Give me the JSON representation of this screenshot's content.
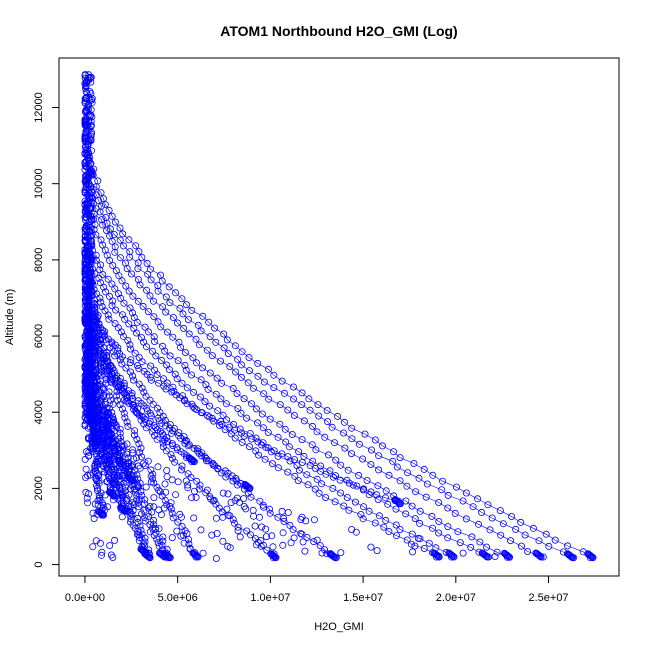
{
  "chart_data": {
    "type": "scatter",
    "title": "ATOM1 Northbound H2O_GMI (Log)",
    "xlabel": "H2O_GMI",
    "ylabel": "Altitude (m)",
    "xlim": [
      -1400000,
      28800000
    ],
    "ylim": [
      -300,
      13300
    ],
    "x_ticks": [
      {
        "value": 0,
        "label": "0.0e+00"
      },
      {
        "value": 5000000,
        "label": "5.0e+06"
      },
      {
        "value": 10000000,
        "label": "1.0e+07"
      },
      {
        "value": 15000000,
        "label": "1.5e+07"
      },
      {
        "value": 20000000,
        "label": "2.0e+07"
      },
      {
        "value": 25000000,
        "label": "2.5e+07"
      }
    ],
    "y_ticks": [
      {
        "value": 0,
        "label": "0"
      },
      {
        "value": 2000,
        "label": "2000"
      },
      {
        "value": 4000,
        "label": "4000"
      },
      {
        "value": 6000,
        "label": "6000"
      },
      {
        "value": 8000,
        "label": "8000"
      },
      {
        "value": 10000,
        "label": "10000"
      },
      {
        "value": 12000,
        "label": "12000"
      }
    ],
    "grid": false,
    "marker": "open-circle",
    "color": "#0000ff",
    "profiles": [
      {
        "surface_x": 27400000,
        "surface_alt": 180,
        "top_alt": 11000
      },
      {
        "surface_x": 26300000,
        "surface_alt": 180,
        "top_alt": 10600
      },
      {
        "surface_x": 24600000,
        "surface_alt": 200,
        "top_alt": 10200
      },
      {
        "surface_x": 22900000,
        "surface_alt": 190,
        "top_alt": 9600
      },
      {
        "surface_x": 21700000,
        "surface_alt": 200,
        "top_alt": 9000
      },
      {
        "surface_x": 19900000,
        "surface_alt": 200,
        "top_alt": 8600
      },
      {
        "surface_x": 19100000,
        "surface_alt": 200,
        "top_alt": 8000
      },
      {
        "surface_x": 17000000,
        "surface_alt": 1600,
        "top_alt": 7000
      },
      {
        "surface_x": 13500000,
        "surface_alt": 180,
        "top_alt": 7600
      },
      {
        "surface_x": 10300000,
        "surface_alt": 180,
        "top_alt": 7200
      },
      {
        "surface_x": 8900000,
        "surface_alt": 2000,
        "top_alt": 6600
      },
      {
        "surface_x": 6100000,
        "surface_alt": 200,
        "top_alt": 8200
      },
      {
        "surface_x": 5900000,
        "surface_alt": 2700,
        "top_alt": 6400
      },
      {
        "surface_x": 4600000,
        "surface_alt": 180,
        "top_alt": 7800
      },
      {
        "surface_x": 4300000,
        "surface_alt": 200,
        "top_alt": 6800
      },
      {
        "surface_x": 3500000,
        "surface_alt": 180,
        "top_alt": 7400
      },
      {
        "surface_x": 3300000,
        "surface_alt": 300,
        "top_alt": 6000
      },
      {
        "surface_x": 2600000,
        "surface_alt": 2200,
        "top_alt": 5600
      },
      {
        "surface_x": 2200000,
        "surface_alt": 1400,
        "top_alt": 6200
      },
      {
        "surface_x": 1600000,
        "surface_alt": 1800,
        "top_alt": 5200
      },
      {
        "surface_x": 1000000,
        "surface_alt": 1300,
        "top_alt": 5800
      },
      {
        "surface_x": 700000,
        "surface_alt": 3200,
        "top_alt": 5000
      }
    ],
    "upper_column": {
      "x_min": 0,
      "x_max": 400000,
      "alt_min": 3800,
      "alt_max": 12900
    }
  }
}
